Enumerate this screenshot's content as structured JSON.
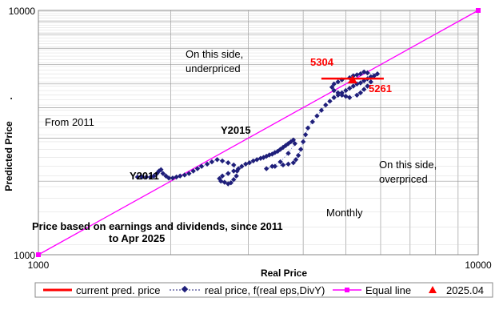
{
  "chart_data": {
    "type": "scatter",
    "title": "",
    "xlabel": "Real Price",
    "ylabel": "Predicted Price",
    "ylabel_suffix": ".",
    "xscale": "log",
    "yscale": "log",
    "xlim": [
      1000,
      10000
    ],
    "ylim": [
      1000,
      10000
    ],
    "x_tick_labels": [
      "1000",
      "10000"
    ],
    "y_tick_labels": [
      "10000",
      "1000"
    ],
    "grid": true,
    "legend_position": "bottom",
    "annotations": {
      "underpriced": [
        "On this side,",
        "underpriced"
      ],
      "overpriced": [
        "On this side,",
        "overpriced"
      ],
      "from": "From 2011",
      "y2011": "Y2011",
      "y2015": "Y2015",
      "monthly": "Monthly",
      "description": [
        "Price  based on earnings and dividends, since 2011",
        "to Apr 2025"
      ],
      "val_upper": "5304",
      "val_lower": "5261"
    },
    "series": [
      {
        "name": "current pred. price",
        "color": "#ff0000",
        "type": "hline",
        "x": [
          4400,
          6100
        ],
        "y": [
          5261,
          5261
        ]
      },
      {
        "name": "real price, f(real eps,DivY)",
        "color": "#1f1f7a",
        "type": "line-markers-dotted",
        "x": [
          1680,
          1720,
          1760,
          1800,
          1830,
          1860,
          1880,
          1900,
          1920,
          1950,
          1980,
          2020,
          2060,
          2100,
          2150,
          2200,
          2250,
          2300,
          2350,
          2420,
          2480,
          2550,
          2620,
          2700,
          2780,
          2830,
          2820,
          2780,
          2740,
          2700,
          2650,
          2600,
          2580,
          2620,
          2700,
          2780,
          2850,
          2900,
          2960,
          3020,
          3080,
          3140,
          3200,
          3250,
          3300,
          3350,
          3400,
          3450,
          3500,
          3550,
          3600,
          3650,
          3700,
          3750,
          3800,
          3830,
          3700,
          3550,
          3400,
          3300,
          3450,
          3600,
          3700,
          3800,
          3850,
          3900,
          3950,
          4000,
          4050,
          4100,
          4200,
          4300,
          4400,
          4500,
          4600,
          4700,
          4800,
          4900,
          5000,
          5100,
          5200,
          5300,
          5400,
          5500,
          5600,
          5700,
          5800,
          5900,
          5600,
          5500,
          5400,
          5300,
          5200,
          5100,
          4900,
          4800,
          4700,
          4650,
          4700,
          4800,
          4900,
          5000,
          5100,
          5300,
          5400,
          5500,
          5600,
          5700
        ],
        "y": [
          2080,
          2080,
          2080,
          2080,
          2100,
          2150,
          2200,
          2230,
          2150,
          2100,
          2060,
          2060,
          2080,
          2100,
          2120,
          2150,
          2200,
          2250,
          2300,
          2350,
          2400,
          2450,
          2420,
          2380,
          2330,
          2200,
          2100,
          2030,
          1970,
          1950,
          1980,
          2000,
          2050,
          2100,
          2150,
          2200,
          2250,
          2300,
          2350,
          2380,
          2420,
          2450,
          2480,
          2500,
          2530,
          2560,
          2580,
          2620,
          2650,
          2700,
          2750,
          2800,
          2850,
          2900,
          2950,
          2850,
          2600,
          2400,
          2300,
          2250,
          2300,
          2330,
          2350,
          2380,
          2450,
          2550,
          2700,
          2900,
          3100,
          3300,
          3500,
          3700,
          3900,
          4100,
          4250,
          4400,
          4500,
          4600,
          4700,
          4800,
          4900,
          5000,
          5050,
          5150,
          5250,
          5350,
          5400,
          5500,
          5550,
          5600,
          5500,
          5450,
          5400,
          5300,
          5200,
          5100,
          5000,
          4850,
          4700,
          4600,
          4500,
          4450,
          4400,
          4500,
          4600,
          4750,
          4900,
          5100
        ]
      },
      {
        "name": "Equal line",
        "color": "#ff00ff",
        "type": "line",
        "x": [
          1000,
          10000
        ],
        "y": [
          1000,
          10000
        ]
      },
      {
        "name": "2025.04",
        "color": "#ff0000",
        "type": "marker-triangle",
        "x": [
          5180
        ],
        "y": [
          5180
        ]
      }
    ]
  }
}
